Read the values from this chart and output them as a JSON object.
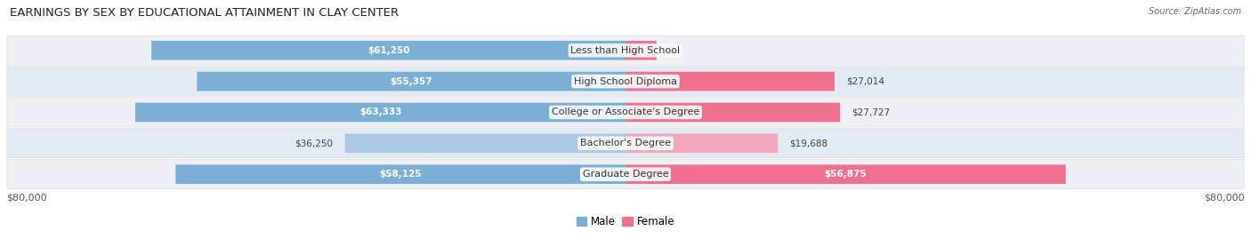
{
  "title": "EARNINGS BY SEX BY EDUCATIONAL ATTAINMENT IN CLAY CENTER",
  "source": "Source: ZipAtlas.com",
  "categories": [
    "Less than High School",
    "High School Diploma",
    "College or Associate's Degree",
    "Bachelor's Degree",
    "Graduate Degree"
  ],
  "male_values": [
    61250,
    55357,
    63333,
    36250,
    58125
  ],
  "female_values": [
    0,
    27014,
    27727,
    19688,
    56875
  ],
  "male_label_inside": [
    true,
    true,
    true,
    false,
    true
  ],
  "female_label_inside": [
    false,
    false,
    false,
    false,
    true
  ],
  "max_value": 80000,
  "male_color_normal": "#7bafd4",
  "male_color_light": "#aec9e4",
  "female_color_normal": "#f07090",
  "female_color_light": "#f4a8bc",
  "row_bg_even": "#edf1f7",
  "row_bg_odd": "#e2eaf4",
  "label_fontsize": 8.0,
  "title_fontsize": 9.5,
  "value_fontsize": 7.5,
  "axis_label_fontsize": 8.0
}
